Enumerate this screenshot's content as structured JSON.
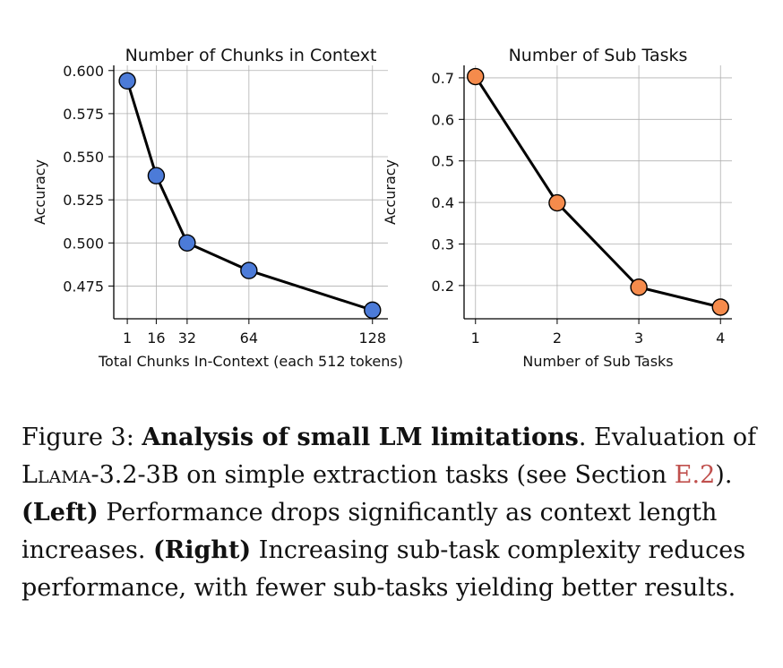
{
  "chart_data": [
    {
      "type": "line",
      "title": "Number of Chunks in Context",
      "xlabel": "Total Chunks In-Context (each 512 tokens)",
      "ylabel": "Accuracy",
      "x": [
        1,
        16,
        32,
        64,
        128
      ],
      "x_tick_labels": [
        "1",
        "16",
        "32",
        "64",
        "128"
      ],
      "xlim": [
        -6,
        136
      ],
      "y_ticks": [
        0.475,
        0.5,
        0.525,
        0.55,
        0.575,
        0.6
      ],
      "y_tick_labels": [
        "0.475",
        "0.500",
        "0.525",
        "0.550",
        "0.575",
        "0.600"
      ],
      "ylim": [
        0.456,
        0.603
      ],
      "grid": true,
      "series": [
        {
          "values": [
            0.594,
            0.539,
            0.5,
            0.484,
            0.461
          ],
          "color": "#4c7bd8"
        }
      ]
    },
    {
      "type": "line",
      "title": "Number of Sub Tasks",
      "xlabel": "Number of Sub Tasks",
      "ylabel": "Accuracy",
      "x": [
        1,
        2,
        3,
        4
      ],
      "x_tick_labels": [
        "1",
        "2",
        "3",
        "4"
      ],
      "xlim": [
        0.86,
        4.14
      ],
      "y_ticks": [
        0.2,
        0.3,
        0.4,
        0.5,
        0.6,
        0.7
      ],
      "y_tick_labels": [
        "0.2",
        "0.3",
        "0.4",
        "0.5",
        "0.6",
        "0.7"
      ],
      "ylim": [
        0.12,
        0.73
      ],
      "grid": true,
      "series": [
        {
          "values": [
            0.703,
            0.399,
            0.196,
            0.148
          ],
          "color": "#f58b4c"
        }
      ]
    }
  ],
  "caption": {
    "label": "Figure 3:",
    "bold_title": "Analysis of small LM limitations",
    "text_1": ". Evaluation of ",
    "model_name": "Llama",
    "model_suffix": "-3.2-3B",
    "text_2": " on simple extraction tasks (see Section ",
    "section_ref": "E.2",
    "text_3": "). ",
    "left_label": "(Left)",
    "left_text": " Performance drops significantly as context length increases. ",
    "right_label": "(Right)",
    "right_text": " Increasing sub-task complexity reduces performance, with fewer sub-tasks yielding better results."
  }
}
